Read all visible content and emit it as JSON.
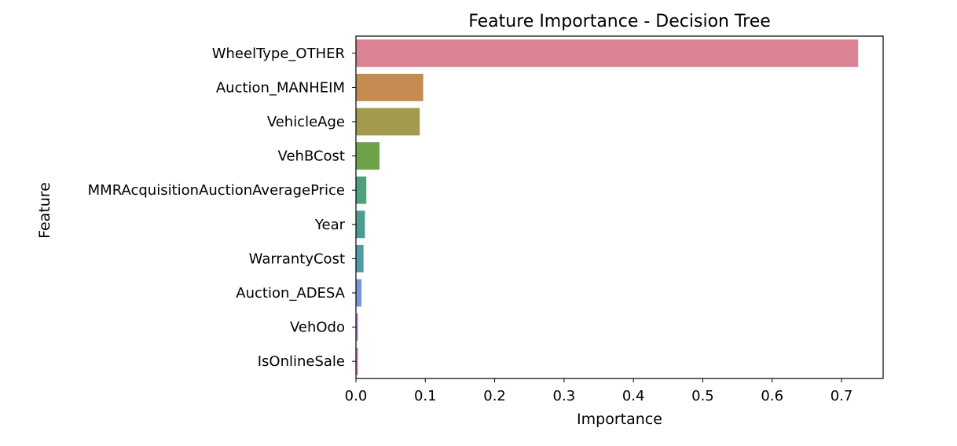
{
  "chart_data": {
    "type": "bar",
    "orientation": "horizontal",
    "title": "Feature Importance - Decision Tree",
    "xlabel": "Importance",
    "ylabel": "Feature",
    "xlim": [
      0,
      0.76
    ],
    "xticks": [
      0.0,
      0.1,
      0.2,
      0.3,
      0.4,
      0.5,
      0.6,
      0.7
    ],
    "xtick_labels": [
      "0.0",
      "0.1",
      "0.2",
      "0.3",
      "0.4",
      "0.5",
      "0.6",
      "0.7"
    ],
    "categories": [
      "WheelType_OTHER",
      "Auction_MANHEIM",
      "VehicleAge",
      "VehBCost",
      "MMRAcquisitionAuctionAveragePrice",
      "Year",
      "WarrantyCost",
      "Auction_ADESA",
      "VehOdo",
      "IsOnlineSale"
    ],
    "values": [
      0.724,
      0.097,
      0.092,
      0.034,
      0.015,
      0.013,
      0.011,
      0.008,
      0.003,
      0.003
    ],
    "colors": [
      "#da8493",
      "#c48b51",
      "#a29a4d",
      "#6ea24a",
      "#4fa07b",
      "#4f9d91",
      "#539aa7",
      "#7c93d6",
      "#ae85d4",
      "#d67cb7"
    ],
    "grid": false
  }
}
